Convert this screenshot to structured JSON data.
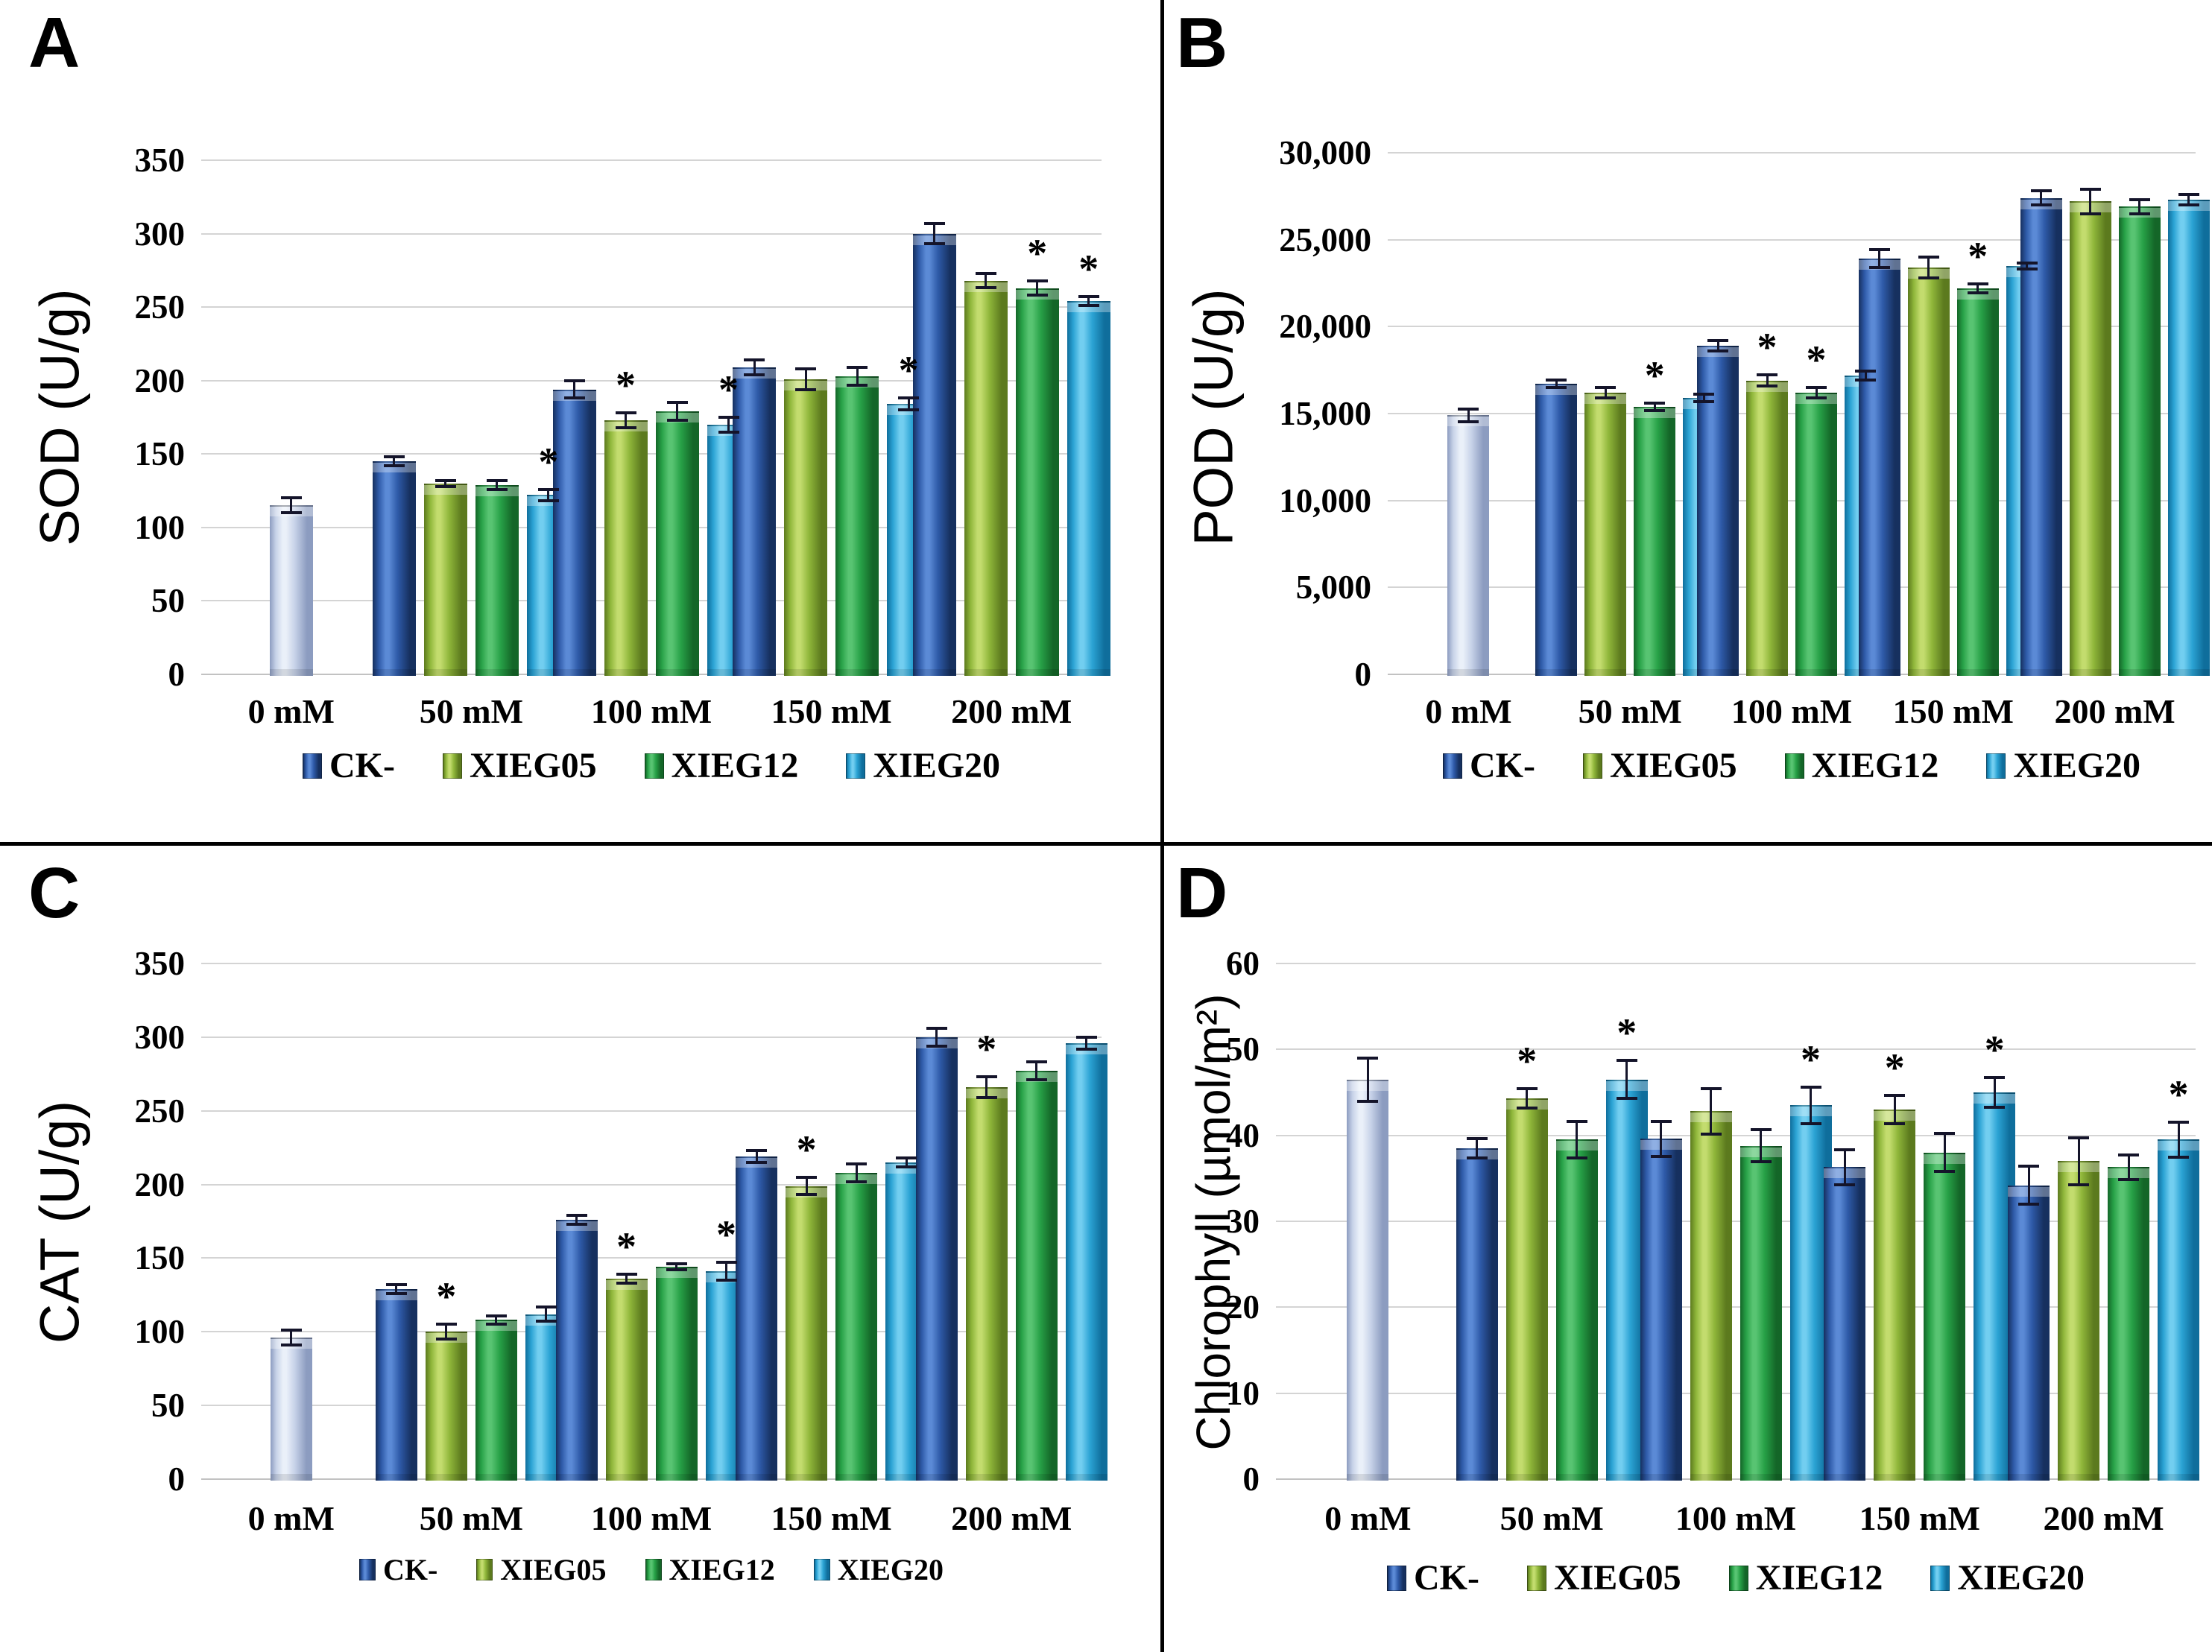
{
  "figure": {
    "sig_symbol": "*",
    "series_colors": {
      "CK-": {
        "dark": "#16305F",
        "main": "#2E5AA8",
        "light": "#5B8AD6"
      },
      "XIEG05": {
        "dark": "#5C7A1E",
        "main": "#8FB63A",
        "light": "#C3DC6E"
      },
      "XIEG12": {
        "dark": "#146628",
        "main": "#27A147",
        "light": "#58C472"
      },
      "XIEG20": {
        "dark": "#0F6E9C",
        "main": "#2BA3D4",
        "light": "#72CEF0"
      },
      "control": {
        "dark": "#8C9CC0",
        "main": "#C7D2E8",
        "light": "#EAF0F9"
      }
    }
  },
  "chart_data": [
    {
      "type": "bar",
      "panel": "A",
      "ylabel": "SOD (U/g)",
      "ylim": [
        0,
        350
      ],
      "yticks": [
        "350",
        "300",
        "250",
        "200",
        "150",
        "100",
        "50",
        "0"
      ],
      "categories": [
        "0 mM",
        "50 mM",
        "100 mM",
        "150 mM",
        "200 mM"
      ],
      "legend": [
        "CK-",
        "XIEG05",
        "XIEG12",
        "XIEG20"
      ],
      "grid": true,
      "legend_position": "bottom",
      "control": {
        "category": "0 mM",
        "value": 115,
        "err": 6
      },
      "series": [
        {
          "name": "CK-",
          "values": [
            145,
            194,
            209,
            300
          ],
          "errs": [
            4,
            7,
            6,
            8
          ],
          "sig": [
            false,
            false,
            false,
            false
          ]
        },
        {
          "name": "XIEG05",
          "values": [
            130,
            173,
            201,
            268
          ],
          "errs": [
            3,
            6,
            8,
            6
          ],
          "sig": [
            false,
            true,
            false,
            false
          ]
        },
        {
          "name": "XIEG12",
          "values": [
            129,
            179,
            203,
            263
          ],
          "errs": [
            4,
            7,
            7,
            6
          ],
          "sig": [
            false,
            false,
            false,
            true
          ]
        },
        {
          "name": "XIEG20",
          "values": [
            122,
            170,
            184,
            254
          ],
          "errs": [
            5,
            6,
            5,
            4
          ],
          "sig": [
            true,
            true,
            true,
            true
          ]
        }
      ]
    },
    {
      "type": "bar",
      "panel": "B",
      "ylabel": "POD (U/g)",
      "ylim": [
        0,
        30000
      ],
      "yticks": [
        "30,000",
        "25,000",
        "20,000",
        "15,000",
        "10,000",
        "5,000",
        "0"
      ],
      "categories": [
        "0 mM",
        "50 mM",
        "100 mM",
        "150 mM",
        "200 mM"
      ],
      "legend": [
        "CK-",
        "XIEG05",
        "XIEG12",
        "XIEG20"
      ],
      "grid": true,
      "legend_position": "bottom",
      "control": {
        "category": "0 mM",
        "value": 14900,
        "err": 450
      },
      "series": [
        {
          "name": "CK-",
          "values": [
            16700,
            18900,
            23900,
            27400
          ],
          "errs": [
            300,
            400,
            600,
            500
          ],
          "sig": [
            false,
            false,
            false,
            false
          ]
        },
        {
          "name": "XIEG05",
          "values": [
            16200,
            16900,
            23400,
            27200
          ],
          "errs": [
            400,
            400,
            700,
            800
          ],
          "sig": [
            false,
            true,
            false,
            false
          ]
        },
        {
          "name": "XIEG12",
          "values": [
            15400,
            16200,
            22200,
            26900
          ],
          "errs": [
            300,
            400,
            350,
            500
          ],
          "sig": [
            true,
            true,
            true,
            false
          ]
        },
        {
          "name": "XIEG20",
          "values": [
            15900,
            17200,
            23500,
            27300
          ],
          "errs": [
            300,
            350,
            250,
            400
          ],
          "sig": [
            false,
            false,
            false,
            false
          ]
        }
      ]
    },
    {
      "type": "bar",
      "panel": "C",
      "ylabel": "CAT (U/g)",
      "ylim": [
        0,
        350
      ],
      "yticks": [
        "350",
        "300",
        "250",
        "200",
        "150",
        "100",
        "50",
        "0"
      ],
      "categories": [
        "0 mM",
        "50 mM",
        "100 mM",
        "150 mM",
        "200 mM"
      ],
      "legend": [
        "CK-",
        "XIEG05",
        "XIEG12",
        "XIEG20"
      ],
      "grid": true,
      "legend_position": "bottom",
      "control": {
        "category": "0 mM",
        "value": 96,
        "err": 6
      },
      "series": [
        {
          "name": "CK-",
          "values": [
            129,
            176,
            219,
            300
          ],
          "errs": [
            4,
            4,
            5,
            7
          ],
          "sig": [
            false,
            false,
            false,
            false
          ]
        },
        {
          "name": "XIEG05",
          "values": [
            100,
            136,
            199,
            266
          ],
          "errs": [
            6,
            4,
            7,
            8
          ],
          "sig": [
            true,
            true,
            true,
            true
          ]
        },
        {
          "name": "XIEG12",
          "values": [
            108,
            144,
            208,
            277
          ],
          "errs": [
            4,
            3,
            7,
            7
          ],
          "sig": [
            false,
            false,
            false,
            false
          ]
        },
        {
          "name": "XIEG20",
          "values": [
            112,
            141,
            215,
            296
          ],
          "errs": [
            6,
            7,
            4,
            5
          ],
          "sig": [
            false,
            true,
            false,
            false
          ]
        }
      ]
    },
    {
      "type": "bar",
      "panel": "D",
      "ylabel": "Chlorophyll (µmol/m²)",
      "ylim": [
        0,
        60
      ],
      "yticks": [
        "60",
        "50",
        "40",
        "30",
        "20",
        "10",
        "0"
      ],
      "categories": [
        "0 mM",
        "50 mM",
        "100 mM",
        "150 mM",
        "200 mM"
      ],
      "legend": [
        "CK-",
        "XIEG05",
        "XIEG12",
        "XIEG20"
      ],
      "grid": true,
      "legend_position": "bottom",
      "control": {
        "category": "0 mM",
        "value": 46.5,
        "err": 2.7
      },
      "series": [
        {
          "name": "CK-",
          "values": [
            38.5,
            39.6,
            36.3,
            34.2
          ],
          "errs": [
            1.3,
            2.2,
            2.2,
            2.4
          ],
          "sig": [
            false,
            false,
            false,
            false
          ]
        },
        {
          "name": "XIEG05",
          "values": [
            44.3,
            42.8,
            43.0,
            37.0
          ],
          "errs": [
            1.3,
            2.8,
            1.8,
            2.9
          ],
          "sig": [
            true,
            false,
            true,
            false
          ]
        },
        {
          "name": "XIEG12",
          "values": [
            39.5,
            38.8,
            38.0,
            36.3
          ],
          "errs": [
            2.3,
            2.0,
            2.4,
            1.6
          ],
          "sig": [
            false,
            false,
            false,
            false
          ]
        },
        {
          "name": "XIEG20",
          "values": [
            46.5,
            43.5,
            45.0,
            39.5
          ],
          "errs": [
            2.4,
            2.3,
            1.9,
            2.2
          ],
          "sig": [
            true,
            true,
            true,
            true
          ]
        }
      ]
    }
  ]
}
